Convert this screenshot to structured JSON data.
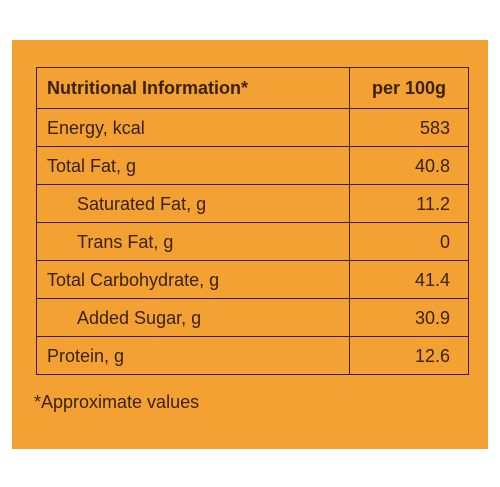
{
  "table": {
    "header": {
      "label": "Nutritional Information*",
      "value": "per 100g"
    },
    "rows": [
      {
        "label": "Energy, kcal",
        "value": "583",
        "indent": false
      },
      {
        "label": "Total Fat, g",
        "value": "40.8",
        "indent": false
      },
      {
        "label": "Saturated Fat, g",
        "value": "11.2",
        "indent": true
      },
      {
        "label": "Trans Fat, g",
        "value": "0",
        "indent": true
      },
      {
        "label": "Total Carbohydrate, g",
        "value": "41.4",
        "indent": false
      },
      {
        "label": "Added Sugar, g",
        "value": "30.9",
        "indent": true
      },
      {
        "label": "Protein, g",
        "value": "12.6",
        "indent": false
      }
    ]
  },
  "footnote": "*Approximate values",
  "colors": {
    "background": "#f3a132",
    "text": "#3b2206"
  }
}
